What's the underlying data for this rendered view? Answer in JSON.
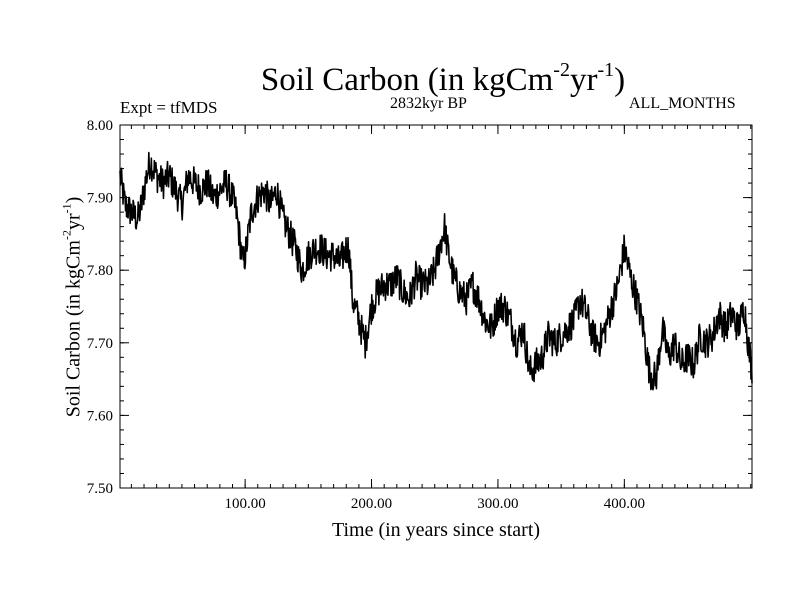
{
  "chart_data": {
    "type": "line",
    "title": "Soil Carbon (in kgCm",
    "title_sup1": "-2",
    "title_mid": "yr",
    "title_sup2": "-1",
    "title_end": ")",
    "experiment": "Expt = tfMDS",
    "period": "2832kyr BP",
    "months": "ALL_MONTHS",
    "xlabel": "Time (in years since start)",
    "ylabel_main": "Soil Carbon (in kgCm",
    "ylabel_sup1": "-2",
    "ylabel_mid": "yr",
    "ylabel_sup2": "-1",
    "ylabel_end": ")",
    "xlim": [
      1,
      501
    ],
    "ylim": [
      7.5,
      8.0
    ],
    "x_ticks": [
      100,
      200,
      300,
      400
    ],
    "x_tick_labels": [
      "100.00",
      "200.00",
      "300.00",
      "400.00"
    ],
    "y_ticks": [
      7.5,
      7.6,
      7.7,
      7.8,
      7.9,
      8.0
    ],
    "y_tick_labels": [
      "7.50",
      "7.60",
      "7.70",
      "7.80",
      "7.90",
      "8.00"
    ],
    "line_color": "#000000",
    "series": [
      {
        "name": "Soil Carbon",
        "x": [
          1,
          5,
          10,
          15,
          18,
          22,
          25,
          30,
          35,
          40,
          45,
          50,
          55,
          60,
          65,
          70,
          75,
          80,
          85,
          90,
          93,
          96,
          98,
          100,
          105,
          110,
          115,
          120,
          125,
          130,
          135,
          140,
          145,
          150,
          155,
          160,
          165,
          170,
          175,
          180,
          182,
          185,
          190,
          195,
          200,
          205,
          210,
          215,
          220,
          225,
          230,
          235,
          240,
          245,
          250,
          255,
          258,
          260,
          265,
          270,
          275,
          280,
          285,
          290,
          295,
          300,
          305,
          310,
          315,
          320,
          325,
          330,
          335,
          340,
          345,
          350,
          355,
          360,
          365,
          370,
          375,
          380,
          385,
          390,
          395,
          400,
          405,
          410,
          415,
          418,
          420,
          425,
          430,
          435,
          440,
          445,
          450,
          455,
          460,
          465,
          470,
          475,
          480,
          485,
          490,
          495,
          498,
          501
        ],
        "values": [
          7.93,
          7.89,
          7.88,
          7.87,
          7.89,
          7.93,
          7.95,
          7.93,
          7.92,
          7.93,
          7.91,
          7.89,
          7.93,
          7.92,
          7.91,
          7.92,
          7.9,
          7.91,
          7.92,
          7.9,
          7.88,
          7.84,
          7.81,
          7.82,
          7.88,
          7.9,
          7.91,
          7.89,
          7.91,
          7.87,
          7.85,
          7.83,
          7.8,
          7.82,
          7.83,
          7.83,
          7.82,
          7.82,
          7.81,
          7.83,
          7.83,
          7.76,
          7.73,
          7.7,
          7.75,
          7.77,
          7.78,
          7.78,
          7.79,
          7.77,
          7.76,
          7.79,
          7.78,
          7.78,
          7.8,
          7.84,
          7.86,
          7.83,
          7.79,
          7.77,
          7.76,
          7.78,
          7.76,
          7.73,
          7.72,
          7.75,
          7.75,
          7.73,
          7.7,
          7.72,
          7.66,
          7.67,
          7.68,
          7.71,
          7.7,
          7.71,
          7.72,
          7.73,
          7.76,
          7.74,
          7.71,
          7.7,
          7.72,
          7.75,
          7.78,
          7.83,
          7.79,
          7.76,
          7.72,
          7.68,
          7.66,
          7.65,
          7.72,
          7.68,
          7.7,
          7.67,
          7.68,
          7.67,
          7.71,
          7.7,
          7.71,
          7.74,
          7.72,
          7.74,
          7.72,
          7.75,
          7.7,
          7.66
        ]
      }
    ]
  }
}
